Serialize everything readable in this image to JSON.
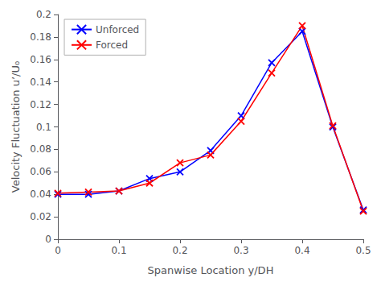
{
  "chart_data": {
    "type": "line",
    "xlabel": "Spanwise Location y/DH",
    "ylabel": "Velocity Fluctuation u’/U₀",
    "x": [
      0.0,
      0.05,
      0.1,
      0.15,
      0.2,
      0.25,
      0.3,
      0.35,
      0.4,
      0.45,
      0.5
    ],
    "series": [
      {
        "name": "Unforced",
        "color": "#0000FF",
        "values": [
          0.04,
          0.04,
          0.043,
          0.054,
          0.06,
          0.079,
          0.11,
          0.157,
          0.185,
          0.1,
          0.026
        ]
      },
      {
        "name": "Forced",
        "color": "#FF0000",
        "values": [
          0.041,
          0.042,
          0.043,
          0.05,
          0.068,
          0.075,
          0.105,
          0.148,
          0.19,
          0.101,
          0.025
        ]
      }
    ],
    "marker": "x",
    "xlim": [
      0,
      0.5
    ],
    "ylim": [
      0,
      0.2
    ],
    "xticks": [
      0,
      0.1,
      0.2,
      0.3,
      0.4,
      0.5
    ],
    "yticks": [
      0,
      0.02,
      0.04,
      0.06,
      0.08,
      0.1,
      0.12,
      0.14,
      0.16,
      0.18,
      0.2
    ],
    "legend": "upper left",
    "grid": false
  }
}
